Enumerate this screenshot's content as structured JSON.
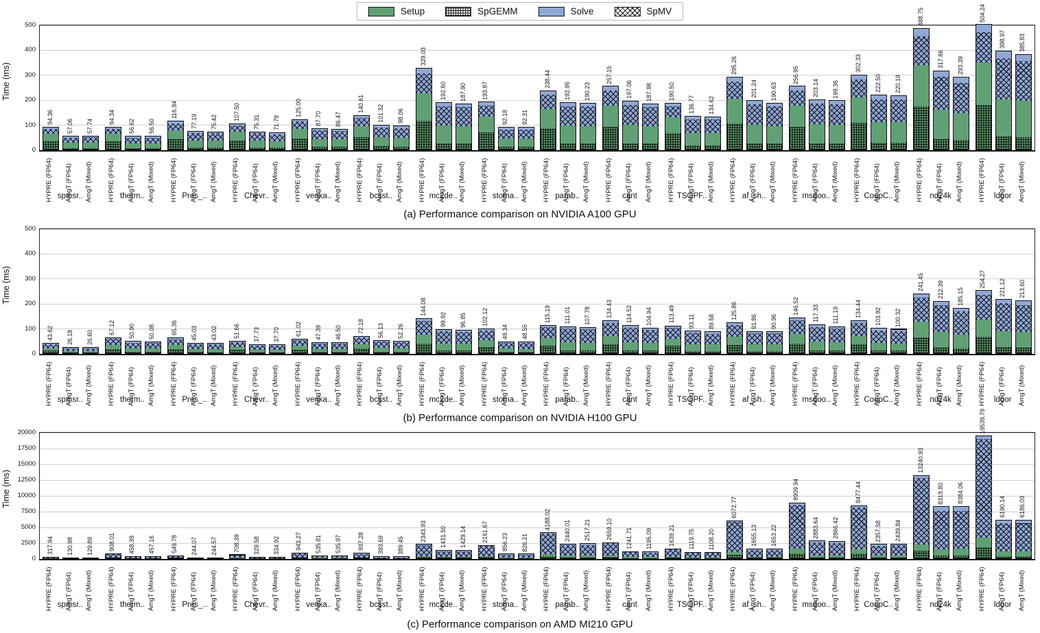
{
  "legend": {
    "items": [
      {
        "label": "Setup",
        "swatch": "setup-swatch"
      },
      {
        "label": "SpGEMM",
        "swatch": "spgemm-hatch-swatch"
      },
      {
        "label": "Solve",
        "swatch": "solve-swatch"
      },
      {
        "label": "SpMV",
        "swatch": "spmv-hatch-swatch"
      }
    ]
  },
  "colors": {
    "setup_green": "#61a075",
    "solve_blue": "#91a8d5",
    "hatch_black": "#111111",
    "gridline_gray": "#cfcfcf"
  },
  "bar_series": [
    "HYPRE (FP64)",
    "AmgT (FP64)",
    "AmgT (Mixed)"
  ],
  "categories": [
    "spmsr..",
    "therm..",
    "Pres_..",
    "Chevr..",
    "venka..",
    "bcsst..",
    "mc2de..",
    "stoma..",
    "parab..",
    "cant",
    "TSOPF..",
    "af_sh..",
    "msdoo..",
    "CoupC..",
    "nd24k",
    "ldoor"
  ],
  "chart_data": [
    {
      "type": "bar",
      "title": "(a) Performance comparison on NVIDIA A100 GPU",
      "ylabel": "Time (ms)",
      "ylim": [
        0,
        500
      ],
      "yticks": [
        0,
        100,
        200,
        300,
        400,
        500
      ],
      "grid": true,
      "stack_order": [
        "SpGEMM",
        "Setup",
        "SpMV",
        "Solve"
      ],
      "categories": [
        "spmsr..",
        "therm..",
        "Pres_..",
        "Chevr..",
        "venka..",
        "bcsst..",
        "mc2de..",
        "stoma..",
        "parab..",
        "cant",
        "TSOPF..",
        "af_sh..",
        "msdoo..",
        "CoupC..",
        "nd24k",
        "ldoor"
      ],
      "series": [
        {
          "name": "HYPRE (FP64)",
          "values": [
            94.36,
            94.34,
            116.94,
            107.5,
            125.0,
            140.61,
            329.03,
            193.87,
            238.44,
            257.15,
            190.5,
            295.26,
            256.95,
            302.33,
            488.75,
            504.24
          ]
        },
        {
          "name": "AmgT (FP64)",
          "values": [
            57.06,
            56.62,
            77.19,
            75.31,
            87.7,
            101.32,
            192.6,
            92.18,
            192.95,
            197.06,
            136.77,
            201.24,
            203.14,
            222.5,
            317.66,
            398.97
          ]
        },
        {
          "name": "AmgT (Mixed)",
          "values": [
            57.74,
            56.5,
            75.42,
            71.78,
            86.47,
            98.06,
            187.9,
            92.31,
            190.23,
            187.98,
            134.62,
            190.63,
            199.36,
            220.19,
            293.39,
            385.83
          ]
        }
      ],
      "segment_fractions_est": {
        "hypre": [
          0.36,
          0.34,
          0.24,
          0.06
        ],
        "amgt": [
          0.13,
          0.38,
          0.42,
          0.07
        ]
      }
    },
    {
      "type": "bar",
      "title": "(b) Performance comparison on NVIDIA H100 GPU",
      "ylabel": "Time (ms)",
      "ylim": [
        0,
        500
      ],
      "yticks": [
        0,
        100,
        200,
        300,
        400,
        500
      ],
      "grid": true,
      "stack_order": [
        "SpGEMM",
        "Setup",
        "SpMV",
        "Solve"
      ],
      "categories": [
        "spmsr..",
        "therm..",
        "Pres_..",
        "Chevr..",
        "venka..",
        "bcsst..",
        "mc2de..",
        "stoma..",
        "parab..",
        "cant",
        "TSOPF..",
        "af_sh..",
        "msdoo..",
        "CoupC..",
        "nd24k",
        "ldoor"
      ],
      "series": [
        {
          "name": "HYPRE (FP64)",
          "values": [
            43.62,
            67.12,
            65.36,
            51.66,
            61.02,
            72.18,
            144.08,
            102.12,
            115.19,
            134.43,
            113.49,
            125.86,
            146.52,
            134.44,
            241.45,
            254.27
          ]
        },
        {
          "name": "AmgT (FP64)",
          "values": [
            26.18,
            50.9,
            45.03,
            37.73,
            47.39,
            56.13,
            99.92,
            49.34,
            111.01,
            114.52,
            93.11,
            91.86,
            117.33,
            103.92,
            212.39,
            221.12
          ]
        },
        {
          "name": "AmgT (Mixed)",
          "values": [
            26.6,
            50.08,
            43.02,
            37.7,
            46.5,
            52.26,
            96.85,
            48.55,
            107.78,
            104.94,
            89.58,
            90.96,
            111.19,
            100.32,
            185.15,
            213.6
          ]
        }
      ],
      "segment_fractions_est": {
        "hypre": [
          0.27,
          0.27,
          0.4,
          0.06
        ],
        "amgt": [
          0.11,
          0.3,
          0.52,
          0.07
        ]
      }
    },
    {
      "type": "bar",
      "title": "(c) Performance comparison on AMD MI210 GPU",
      "ylabel": "Time (ms)",
      "ylim": [
        0,
        20000
      ],
      "yticks": [
        0,
        2500,
        5000,
        7500,
        10000,
        12500,
        15000,
        17500,
        20000
      ],
      "grid": true,
      "stack_order": [
        "SpGEMM",
        "Setup",
        "SpMV",
        "Solve"
      ],
      "categories": [
        "spmsr..",
        "therm..",
        "Pres_..",
        "Chevr..",
        "venka..",
        "bcsst..",
        "mc2de..",
        "stoma..",
        "parab..",
        "cant",
        "TSOPF..",
        "af_sh..",
        "msdoo..",
        "CoupC..",
        "nd24k",
        "ldoor"
      ],
      "series": [
        {
          "name": "HYPRE (FP64)",
          "values": [
            317.94,
            908.01,
            549.78,
            708.39,
            943.27,
            937.28,
            2343.93,
            2161.67,
            4188.02,
            2659.1,
            1639.21,
            6072.77,
            8909.94,
            8477.44,
            13240.93,
            19539.79
          ]
        },
        {
          "name": "AmgT (FP64)",
          "values": [
            130.98,
            458.39,
            244.07,
            329.58,
            535.81,
            393.69,
            1431.5,
            856.23,
            2440.01,
            1241.71,
            1119.75,
            1655.13,
            2883.64,
            2357.58,
            8319.8,
            6190.14
          ]
        },
        {
          "name": "AmgT (Mixed)",
          "values": [
            129.89,
            457.16,
            244.57,
            334.92,
            535.97,
            389.45,
            1429.14,
            826.21,
            2517.21,
            1195.09,
            1108.2,
            1653.22,
            2866.42,
            2439.84,
            8384.06,
            6186.03
          ]
        }
      ],
      "segment_fractions_est": {
        "hypre": [
          0.09,
          0.08,
          0.81,
          0.02
        ],
        "amgt": [
          0.05,
          0.13,
          0.74,
          0.08
        ]
      }
    }
  ]
}
